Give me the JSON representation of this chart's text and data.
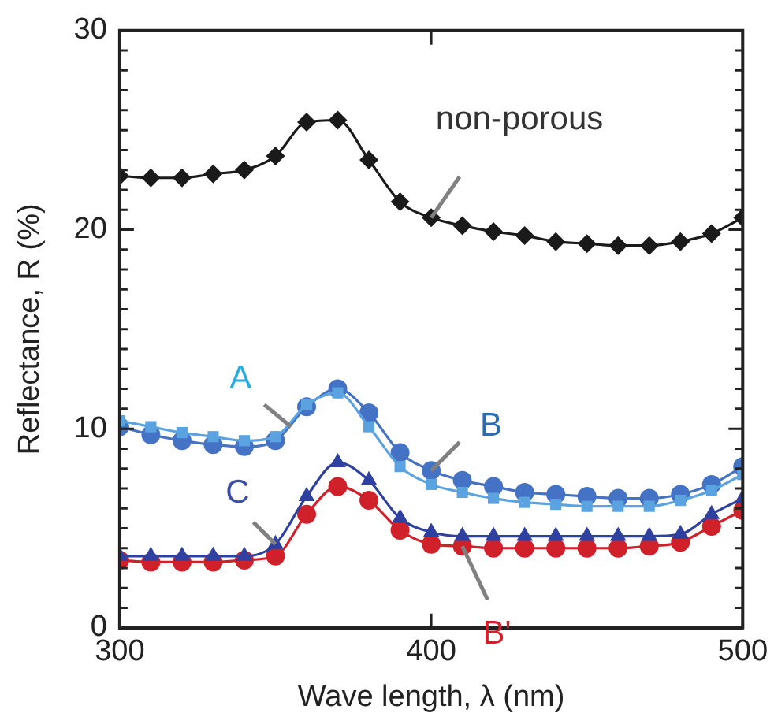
{
  "chart_data": {
    "type": "line",
    "xlabel": "Wave length, λ (nm)",
    "ylabel": "Reflectance, R (%)",
    "x": [
      300,
      310,
      320,
      330,
      340,
      350,
      360,
      370,
      380,
      390,
      400,
      410,
      420,
      430,
      440,
      450,
      460,
      470,
      480,
      490,
      500
    ],
    "xlim": [
      300,
      500
    ],
    "xticks": [
      300,
      400,
      500
    ],
    "ylim": [
      0,
      30
    ],
    "yticks": [
      0,
      {
        "value": 1,
        "label": null
      },
      {
        "value": 2,
        "label": null
      },
      {
        "value": 3,
        "label": null
      },
      {
        "value": 4,
        "label": null
      },
      {
        "value": 5,
        "label": null
      },
      {
        "value": 6,
        "label": null
      },
      {
        "value": 7,
        "label": null
      },
      {
        "value": 8,
        "label": null
      },
      {
        "value": 9,
        "label": null
      },
      10,
      {
        "value": 11,
        "label": null
      },
      {
        "value": 12,
        "label": null
      },
      {
        "value": 13,
        "label": null
      },
      {
        "value": 14,
        "label": null
      },
      {
        "value": 15,
        "label": null
      },
      {
        "value": 16,
        "label": null
      },
      {
        "value": 17,
        "label": null
      },
      {
        "value": 18,
        "label": null
      },
      {
        "value": 19,
        "label": null
      },
      20,
      {
        "value": 21,
        "label": null
      },
      {
        "value": 22,
        "label": null
      },
      {
        "value": 23,
        "label": null
      },
      {
        "value": 24,
        "label": null
      },
      {
        "value": 25,
        "label": null
      },
      {
        "value": 26,
        "label": null
      },
      {
        "value": 27,
        "label": null
      },
      {
        "value": 28,
        "label": null
      },
      {
        "value": 29,
        "label": null
      },
      30
    ],
    "grid": false,
    "legend": false,
    "series": [
      {
        "color": "#1a1a1a",
        "marker": "diamond",
        "values": [
          22.7,
          22.6,
          22.6,
          22.8,
          23.0,
          23.7,
          25.4,
          25.5,
          23.5,
          21.4,
          20.6,
          20.2,
          19.9,
          19.7,
          19.4,
          19.3,
          19.2,
          19.2,
          19.4,
          19.8,
          20.6
        ]
      },
      {
        "color": "#5ba3e0",
        "marker": "square",
        "values": [
          10.4,
          10.1,
          9.8,
          9.6,
          9.4,
          9.6,
          11.2,
          11.8,
          10.1,
          8.1,
          7.2,
          6.8,
          6.5,
          6.3,
          6.2,
          6.1,
          6.1,
          6.1,
          6.4,
          6.9,
          7.7
        ]
      },
      {
        "color": "#4472c4",
        "marker": "circle",
        "values": [
          10.1,
          9.7,
          9.4,
          9.2,
          9.1,
          9.4,
          11.1,
          12.0,
          10.8,
          8.8,
          7.9,
          7.4,
          7.1,
          6.8,
          6.7,
          6.6,
          6.5,
          6.5,
          6.7,
          7.2,
          8.1
        ]
      },
      {
        "color": "#2e40a0",
        "marker": "triangle",
        "values": [
          3.6,
          3.6,
          3.6,
          3.6,
          3.6,
          4.2,
          6.6,
          8.3,
          7.4,
          5.5,
          4.8,
          4.6,
          4.6,
          4.6,
          4.6,
          4.6,
          4.6,
          4.6,
          4.7,
          5.7,
          6.5
        ]
      },
      {
        "color": "#d0202a",
        "marker": "circle",
        "values": [
          3.4,
          3.3,
          3.3,
          3.3,
          3.4,
          3.6,
          5.7,
          7.1,
          6.4,
          4.9,
          4.2,
          4.1,
          4.0,
          4.0,
          4.0,
          4.0,
          4.0,
          4.1,
          4.3,
          5.1,
          5.9
        ]
      }
    ],
    "annotations": [
      {
        "text": "non-porous",
        "x": 400,
        "y": 20.6
      },
      {
        "text": "A",
        "x": 355,
        "y": 10.1
      },
      {
        "text": "B",
        "x": 400,
        "y": 7.9
      },
      {
        "text": "C",
        "x": 350,
        "y": 4.2
      },
      {
        "text": "B'",
        "x": 410,
        "y": 4.1
      }
    ]
  }
}
